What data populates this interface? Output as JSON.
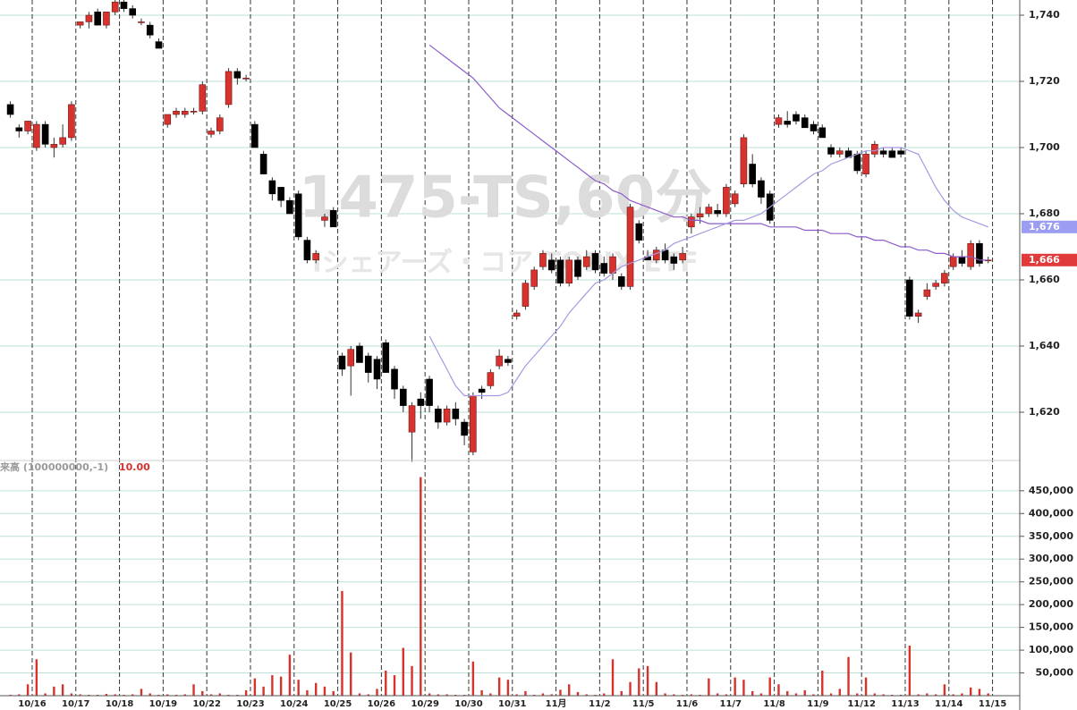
{
  "watermark": {
    "symbol": "1475-TS,60分",
    "name": "iシェアーズ・コア TOPIX ETF"
  },
  "chart_data": [
    {
      "type": "candlestick",
      "categories": [
        null,
        null,
        null,
        "10/16",
        null,
        null,
        null,
        null,
        "10/17",
        null,
        null,
        null,
        null,
        "10/18",
        null,
        null,
        null,
        null,
        "10/19",
        null,
        null,
        null,
        null,
        "10/22",
        null,
        null,
        null,
        null,
        "10/23",
        null,
        null,
        null,
        null,
        "10/24",
        null,
        null,
        null,
        null,
        "10/25",
        null,
        null,
        null,
        null,
        "10/26",
        null,
        null,
        null,
        null,
        "10/29",
        null,
        null,
        null,
        null,
        "10/30",
        null,
        null,
        null,
        null,
        "10/31",
        null,
        null,
        null,
        null,
        "11月",
        null,
        null,
        null,
        null,
        "11/2",
        null,
        null,
        null,
        null,
        "11/5",
        null,
        null,
        null,
        null,
        "11/6",
        null,
        null,
        null,
        null,
        "11/7",
        null,
        null,
        null,
        null,
        "11/8",
        null,
        null,
        null,
        null,
        "11/9",
        null,
        null,
        null,
        null,
        "11/12",
        null,
        null,
        null,
        null,
        "11/13",
        null,
        null,
        null,
        null,
        "11/14",
        null,
        null,
        null,
        null,
        "11/15"
      ],
      "ohlc": [
        [
          1713,
          1714,
          1709,
          1710
        ],
        [
          1706,
          1707,
          1703,
          1705
        ],
        [
          1705,
          1708,
          1704,
          1708
        ],
        [
          1700,
          1708,
          1699,
          1707
        ],
        [
          1707,
          1708,
          1700,
          1701
        ],
        [
          1700,
          1703,
          1697,
          1701
        ],
        [
          1701,
          1707,
          1700,
          1703
        ],
        [
          1703,
          1714,
          1702,
          1713
        ],
        [
          1737,
          1738,
          1736,
          1738
        ],
        [
          1738,
          1741,
          1736,
          1740
        ],
        [
          1741,
          1742,
          1737,
          1737
        ],
        [
          1737,
          1741,
          1736,
          1741
        ],
        [
          1741,
          1745,
          1740,
          1744
        ],
        [
          1744,
          1745,
          1741,
          1742
        ],
        [
          1742,
          1743,
          1739,
          1740
        ],
        [
          1738,
          1739,
          1737,
          1738
        ],
        [
          1737,
          1738,
          1733,
          1734
        ],
        [
          1732,
          1733,
          1730,
          1730
        ],
        [
          1707,
          1710,
          1706,
          1710
        ],
        [
          1710,
          1712,
          1709,
          1711
        ],
        [
          1710,
          1712,
          1709,
          1711
        ],
        [
          1711,
          1712,
          1710,
          1711
        ],
        [
          1711,
          1720,
          1710,
          1719
        ],
        [
          1704,
          1706,
          1703,
          1705
        ],
        [
          1705,
          1710,
          1704,
          1709
        ],
        [
          1713,
          1724,
          1712,
          1723
        ],
        [
          1723,
          1724,
          1719,
          1721
        ],
        [
          1721,
          1722,
          1720,
          1721
        ],
        [
          1707,
          1708,
          1700,
          1700
        ],
        [
          1698,
          1699,
          1692,
          1692
        ],
        [
          1690,
          1691,
          1684,
          1686
        ],
        [
          1688,
          1688,
          1682,
          1684
        ],
        [
          1684,
          1685,
          1680,
          1680
        ],
        [
          1686,
          1687,
          1672,
          1673
        ],
        [
          1672,
          1673,
          1665,
          1666
        ],
        [
          1666,
          1669,
          1665,
          1668
        ],
        [
          1678,
          1680,
          1676,
          1679
        ],
        [
          1681,
          1682,
          1676,
          1676
        ],
        [
          1637,
          1638,
          1631,
          1633
        ],
        [
          1634,
          1640,
          1625,
          1639
        ],
        [
          1640,
          1641,
          1635,
          1635
        ],
        [
          1637,
          1638,
          1629,
          1632
        ],
        [
          1636,
          1637,
          1627,
          1630
        ],
        [
          1641,
          1642,
          1632,
          1632
        ],
        [
          1633,
          1634,
          1624,
          1627
        ],
        [
          1627,
          1628,
          1620,
          1622
        ],
        [
          1614,
          1623,
          1605,
          1622
        ],
        [
          1624,
          1626,
          1618,
          1622
        ],
        [
          1630,
          1631,
          1620,
          1622
        ],
        [
          1621,
          1622,
          1615,
          1617
        ],
        [
          1617,
          1622,
          1616,
          1621
        ],
        [
          1621,
          1623,
          1616,
          1618
        ],
        [
          1617,
          1618,
          1610,
          1613
        ],
        [
          1608,
          1626,
          1607,
          1625
        ],
        [
          1627,
          1628,
          1624,
          1626
        ],
        [
          1628,
          1633,
          1627,
          1632
        ],
        [
          1634,
          1639,
          1633,
          1637
        ],
        [
          1636,
          1637,
          1634,
          1635
        ],
        [
          1649,
          1651,
          1648,
          1650
        ],
        [
          1652,
          1660,
          1651,
          1659
        ],
        [
          1658,
          1664,
          1657,
          1663
        ],
        [
          1664,
          1669,
          1663,
          1668
        ],
        [
          1666,
          1668,
          1662,
          1663
        ],
        [
          1666,
          1667,
          1658,
          1659
        ],
        [
          1659,
          1667,
          1658,
          1666
        ],
        [
          1666,
          1667,
          1660,
          1661
        ],
        [
          1664,
          1669,
          1663,
          1667
        ],
        [
          1668,
          1669,
          1662,
          1663
        ],
        [
          1665,
          1667,
          1661,
          1662
        ],
        [
          1662,
          1668,
          1660,
          1667
        ],
        [
          1661,
          1662,
          1657,
          1658
        ],
        [
          1658,
          1683,
          1657,
          1682
        ],
        [
          1677,
          1678,
          1671,
          1672
        ],
        [
          1667,
          1669,
          1666,
          1666
        ],
        [
          1666,
          1670,
          1665,
          1669
        ],
        [
          1669,
          1671,
          1665,
          1666
        ],
        [
          1667,
          1668,
          1663,
          1665
        ],
        [
          1666,
          1670,
          1665,
          1668
        ],
        [
          1676,
          1680,
          1674,
          1679
        ],
        [
          1679,
          1682,
          1677,
          1680
        ],
        [
          1680,
          1683,
          1679,
          1682
        ],
        [
          1681,
          1683,
          1679,
          1680
        ],
        [
          1680,
          1689,
          1679,
          1688
        ],
        [
          1683,
          1687,
          1682,
          1686
        ],
        [
          1689,
          1704,
          1688,
          1703
        ],
        [
          1695,
          1698,
          1688,
          1689
        ],
        [
          1690,
          1691,
          1683,
          1685
        ],
        [
          1686,
          1687,
          1677,
          1678
        ],
        [
          1707,
          1710,
          1706,
          1709
        ],
        [
          1708,
          1711,
          1706,
          1707
        ],
        [
          1710,
          1711,
          1707,
          1708
        ],
        [
          1709,
          1710,
          1706,
          1706
        ],
        [
          1707,
          1708,
          1704,
          1705
        ],
        [
          1706,
          1707,
          1703,
          1703
        ],
        [
          1700,
          1701,
          1697,
          1698
        ],
        [
          1698,
          1700,
          1697,
          1699
        ],
        [
          1699,
          1700,
          1697,
          1697
        ],
        [
          1698,
          1699,
          1692,
          1693
        ],
        [
          1692,
          1699,
          1691,
          1698
        ],
        [
          1698,
          1702,
          1697,
          1701
        ],
        [
          1699,
          1700,
          1697,
          1698
        ],
        [
          1699,
          1700,
          1697,
          1697
        ],
        [
          1699,
          1700,
          1697,
          1698
        ],
        [
          1660,
          1661,
          1648,
          1649
        ],
        [
          1649,
          1651,
          1647,
          1650
        ],
        [
          1655,
          1659,
          1654,
          1657
        ],
        [
          1658,
          1660,
          1657,
          1659
        ],
        [
          1659,
          1663,
          1658,
          1662
        ],
        [
          1664,
          1668,
          1663,
          1667
        ],
        [
          1667,
          1669,
          1664,
          1665
        ],
        [
          1664,
          1672,
          1663,
          1671
        ],
        [
          1671,
          1672,
          1664,
          1665
        ],
        [
          1666,
          1667,
          1665,
          1666
        ],
        null
      ],
      "up_color": "#d7322d",
      "down_color": "#000000",
      "lines": [
        {
          "color": "#8a5cc8",
          "values": [
            null,
            null,
            null,
            null,
            null,
            null,
            null,
            null,
            null,
            null,
            null,
            null,
            null,
            null,
            null,
            null,
            null,
            null,
            null,
            null,
            null,
            null,
            null,
            null,
            null,
            null,
            null,
            null,
            null,
            null,
            null,
            null,
            null,
            null,
            null,
            null,
            null,
            null,
            null,
            null,
            null,
            null,
            null,
            null,
            null,
            null,
            null,
            null,
            1731,
            1729,
            1727,
            1725,
            1723,
            1721,
            1718,
            1715,
            1712,
            1710,
            1708,
            1706,
            1704,
            1702,
            1700,
            1698,
            1696,
            1694,
            1692,
            1690,
            1689,
            1687,
            1686,
            1684,
            1683,
            1682,
            1681,
            1680,
            1679,
            1679,
            1678,
            1678,
            1677,
            1677,
            1677,
            1677,
            1677,
            1677,
            1677,
            1676,
            1676,
            1676,
            1676,
            1675,
            1675,
            1675,
            1674,
            1674,
            1674,
            1673,
            1673,
            1672,
            1672,
            1671,
            1670,
            1670,
            1669,
            1669,
            1668,
            1668,
            1667,
            1667,
            1667,
            1666,
            1666,
            null
          ]
        },
        {
          "color": "#a39ae0",
          "values": [
            null,
            null,
            null,
            null,
            null,
            null,
            null,
            null,
            null,
            null,
            null,
            null,
            null,
            null,
            null,
            null,
            null,
            null,
            null,
            null,
            null,
            null,
            null,
            null,
            null,
            null,
            null,
            null,
            null,
            null,
            null,
            null,
            null,
            null,
            null,
            null,
            null,
            null,
            null,
            null,
            null,
            null,
            null,
            null,
            null,
            null,
            null,
            null,
            1643,
            1638,
            1633,
            1628,
            1625,
            1625,
            1625,
            1625,
            1625,
            1626,
            1630,
            1634,
            1637,
            1640,
            1643,
            1646,
            1650,
            1653,
            1656,
            1659,
            1660,
            1662,
            1664,
            1665,
            1666,
            1667,
            1668,
            1669,
            1671,
            1672,
            1673,
            1674,
            1675,
            1676,
            1677,
            1678,
            1678,
            1679,
            1680,
            1682,
            1684,
            1686,
            1688,
            1690,
            1692,
            1693,
            1695,
            1696,
            1697,
            1698,
            1699,
            1699,
            1700,
            1700,
            1700,
            1699,
            1698,
            1693,
            1688,
            1684,
            1681,
            1679,
            1678,
            1677,
            1676,
            null
          ]
        }
      ],
      "ylim": [
        1605.4,
        1744.6
      ],
      "yticks": [
        {
          "value": 1620,
          "label": "1,620"
        },
        {
          "value": 1640,
          "label": "1,640"
        },
        {
          "value": 1660,
          "label": "1,660"
        },
        {
          "value": 1680,
          "label": "1,680"
        },
        {
          "value": 1700,
          "label": "1,700"
        },
        {
          "value": 1720,
          "label": "1,720"
        },
        {
          "value": 1740,
          "label": "1,740"
        }
      ],
      "grid": true,
      "price_tags": [
        {
          "value": 1676,
          "label": "1,676",
          "color": "#9a9df2"
        },
        {
          "value": 1666,
          "label": "1,666",
          "color": "#e03a3a"
        }
      ]
    },
    {
      "type": "bar",
      "title": "来高 (100000000,-1)",
      "subtitle": "10.00",
      "color": "#d6332d",
      "values": [
        2000,
        3000,
        25000,
        80000,
        5000,
        20000,
        25000,
        5000,
        3000,
        2000,
        2000,
        4000,
        3000,
        2000,
        3000,
        15000,
        5000,
        2000,
        3000,
        2000,
        3000,
        25000,
        10000,
        3000,
        5000,
        2000,
        2000,
        12000,
        38000,
        20000,
        45000,
        42000,
        90000,
        35000,
        12000,
        28000,
        20000,
        10000,
        230000,
        95000,
        5000,
        3000,
        15000,
        55000,
        45000,
        105000,
        65000,
        480000,
        5000,
        3000,
        3000,
        2000,
        2000,
        75000,
        12000,
        5000,
        40000,
        35000,
        3000,
        10000,
        2000,
        5000,
        3000,
        13000,
        25000,
        8000,
        3000,
        2000,
        5000,
        80000,
        10000,
        30000,
        60000,
        65000,
        30000,
        5000,
        3000,
        2000,
        3000,
        2000,
        38000,
        5000,
        3000,
        40000,
        35000,
        10000,
        5000,
        40000,
        25000,
        10000,
        5000,
        12000,
        3000,
        55000,
        5000,
        15000,
        85000,
        5000,
        40000,
        5000,
        3000,
        2000,
        2000,
        110000,
        3000,
        5000,
        3000,
        25000,
        3000,
        5000,
        18000,
        15000,
        5000,
        null
      ],
      "ylim": [
        0,
        487000
      ],
      "yticks": [
        {
          "value": 50000,
          "label": "50,000"
        },
        {
          "value": 100000,
          "label": "100,000"
        },
        {
          "value": 150000,
          "label": "150,000"
        },
        {
          "value": 200000,
          "label": "200,000"
        },
        {
          "value": 250000,
          "label": "250,000"
        },
        {
          "value": 300000,
          "label": "300,000"
        },
        {
          "value": 350000,
          "label": "350,000"
        },
        {
          "value": 400000,
          "label": "400,000"
        },
        {
          "value": 450000,
          "label": "450,000"
        }
      ],
      "grid": true,
      "value_tag": {
        "value": 10,
        "color": "#e03a3a"
      }
    }
  ]
}
